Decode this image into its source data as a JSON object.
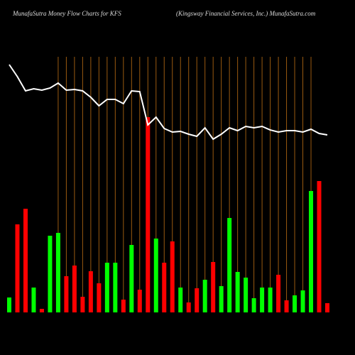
{
  "chart_data": {
    "type": "money_flow",
    "title": "MunafaSutra  Money Flow  Charts for KFS",
    "subtitle": "(Kingsway Financial Services,  Inc.) MunafaSutra.com",
    "categories": [
      null,
      null,
      null,
      null,
      null,
      null,
      null,
      null,
      null,
      null,
      null,
      null,
      null,
      null,
      null,
      null,
      null,
      null,
      null,
      null,
      null,
      null,
      null,
      null,
      null,
      null,
      null,
      null,
      null,
      null,
      null,
      null,
      null,
      null,
      null,
      null,
      null,
      null,
      null,
      null
    ],
    "ylim": [
      0,
      440
    ],
    "series": [
      {
        "color": "#00ff00",
        "kind": "bars",
        "values": [
          21,
          124,
          146,
          35,
          5,
          108,
          112,
          51,
          66,
          22,
          58,
          41,
          70,
          70,
          18,
          95,
          32,
          275,
          104,
          70,
          100,
          35,
          14,
          34,
          46,
          71,
          37,
          133,
          57,
          49,
          20,
          35,
          35,
          53,
          17,
          24,
          31,
          171,
          185,
          13
        ],
        "colors": [
          "#00ff00",
          "#ff0000",
          "#ff0000",
          "#00ff00",
          "#ff0000",
          "#00ff00",
          "#00ff00",
          "#ff0000",
          "#ff0000",
          "#ff0000",
          "#ff0000",
          "#ff0000",
          "#00ff00",
          "#00ff00",
          "#ff0000",
          "#00ff00",
          "#ff0000",
          "#ff0000",
          "#00ff00",
          "#ff0000",
          "#ff0000",
          "#00ff00",
          "#ff0000",
          "#ff0000",
          "#00ff00",
          "#ff0000",
          "#00ff00",
          "#00ff00",
          "#00ff00",
          "#00ff00",
          "#00ff00",
          "#00ff00",
          "#00ff00",
          "#ff0000",
          "#ff0000",
          "#00ff00",
          "#00ff00",
          "#00ff00",
          "#ff0000",
          "#ff0000"
        ]
      },
      {
        "color": "#ffffff",
        "kind": "line",
        "values": [
          349,
          332,
          312,
          315,
          313,
          316,
          323,
          313,
          314,
          312,
          303,
          291,
          300,
          300,
          294,
          312,
          311,
          264,
          275,
          259,
          254,
          255,
          251,
          248,
          260,
          244,
          251,
          260,
          256,
          262,
          260,
          262,
          257,
          254,
          256,
          256,
          254,
          258,
          252,
          250
        ]
      }
    ],
    "grid_color": "#9a5a10"
  }
}
